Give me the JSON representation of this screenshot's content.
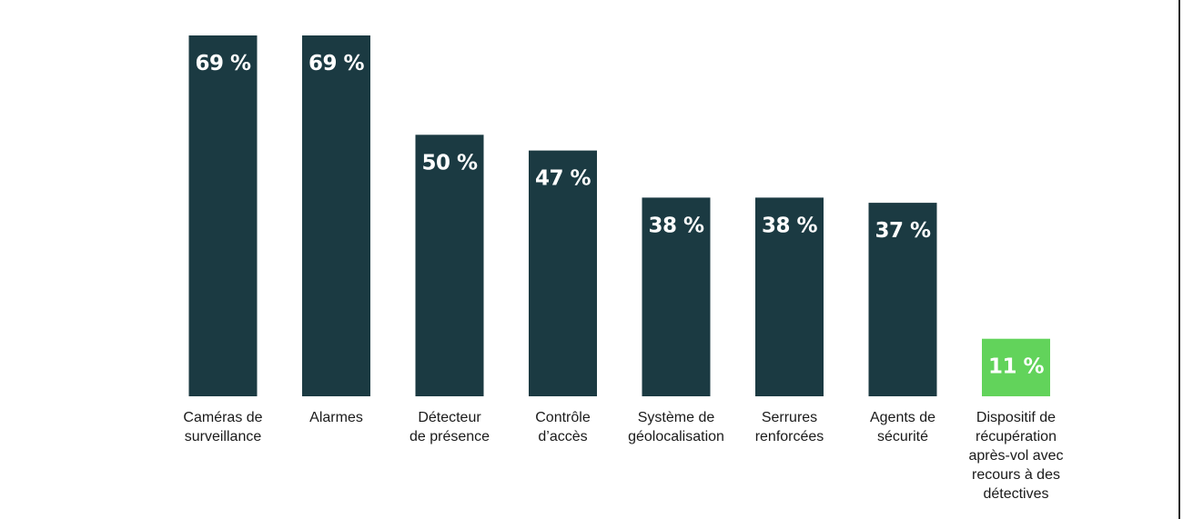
{
  "chart_data": {
    "type": "bar",
    "title": "",
    "xlabel": "",
    "ylabel": "",
    "ylim": [
      0,
      69
    ],
    "categories": [
      "Caméras de\nsurveillance",
      "Alarmes",
      "Détecteur\nde présence",
      "Contrôle\nd’accès",
      "Système de\ngéolocalisation",
      "Serrures\nrenforcées",
      "Agents de\nsécurité",
      "Dispositif de\nrécupération\naprès-vol avec\nrecours à des\ndétectives"
    ],
    "values": [
      69,
      69,
      50,
      47,
      38,
      38,
      37,
      11
    ],
    "value_labels": [
      "69 %",
      "69 %",
      "50 %",
      "47 %",
      "38 %",
      "38 %",
      "37 %",
      "11 %"
    ],
    "colors": [
      "#1b3a42",
      "#1b3a42",
      "#1b3a42",
      "#1b3a42",
      "#1b3a42",
      "#1b3a42",
      "#1b3a42",
      "#62d35b"
    ]
  }
}
